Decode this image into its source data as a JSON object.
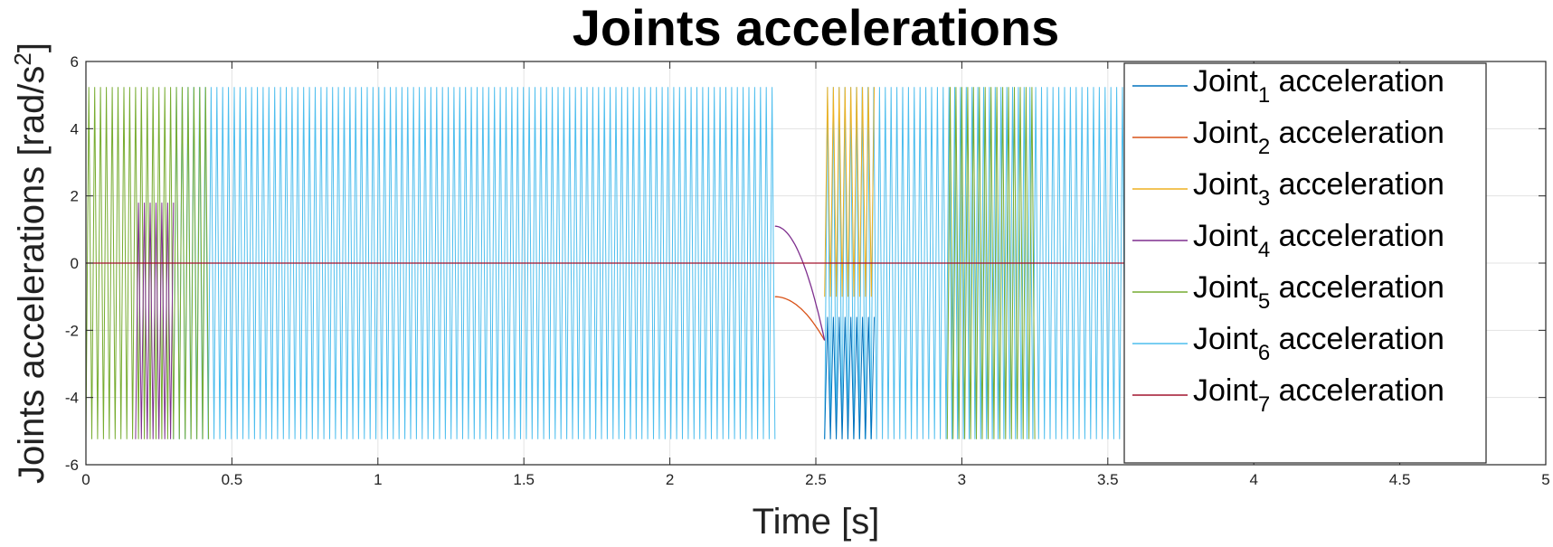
{
  "chart_data": {
    "type": "line",
    "title": "Joints accelerations",
    "xlabel": "Time [s]",
    "ylabel": "Joints accelerations [rad/s^2]",
    "ylabel_parts": {
      "main": "Joints accelerations [rad/s",
      "sup": "2",
      "end": "]"
    },
    "xlim": [
      0,
      5
    ],
    "ylim": [
      -6,
      6
    ],
    "xticks": [
      0,
      0.5,
      1,
      1.5,
      2,
      2.5,
      3,
      3.5,
      4,
      4.5,
      5
    ],
    "xtick_labels": [
      "0",
      "0.5",
      "1",
      "1.5",
      "2",
      "2.5",
      "3",
      "3.5",
      "4",
      "4.5",
      "5"
    ],
    "yticks": [
      -6,
      -4,
      -2,
      0,
      2,
      4,
      6
    ],
    "ytick_labels": [
      "-6",
      "-4",
      "-2",
      "0",
      "2",
      "4",
      "6"
    ],
    "grid": true,
    "legend_position": "top-right",
    "saturation_limit": 5.24,
    "series": [
      {
        "name_prefix": "Joint",
        "name_sub": "1",
        "name_suffix": " acceleration",
        "color": "#0072BD"
      },
      {
        "name_prefix": "Joint",
        "name_sub": "2",
        "name_suffix": " acceleration",
        "color": "#D95319"
      },
      {
        "name_prefix": "Joint",
        "name_sub": "3",
        "name_suffix": " acceleration",
        "color": "#EDB120"
      },
      {
        "name_prefix": "Joint",
        "name_sub": "4",
        "name_suffix": " acceleration",
        "color": "#7E2F8E"
      },
      {
        "name_prefix": "Joint",
        "name_sub": "5",
        "name_suffix": " acceleration",
        "color": "#77AC30"
      },
      {
        "name_prefix": "Joint",
        "name_sub": "6",
        "name_suffix": " acceleration",
        "color": "#4DBEEE"
      },
      {
        "name_prefix": "Joint",
        "name_sub": "7",
        "name_suffix": " acceleration",
        "color": "#A2142F"
      }
    ],
    "segments": [
      {
        "series": 5,
        "x": [
          0.3,
          2.36
        ],
        "y": [
          -5.24,
          5.24
        ],
        "pattern": "oscillating"
      },
      {
        "series": 5,
        "x": [
          2.53,
          3.56
        ],
        "y": [
          -5.24,
          5.24
        ],
        "pattern": "oscillating"
      },
      {
        "series": 4,
        "x": [
          0.0,
          0.42
        ],
        "y": [
          -5.24,
          5.24
        ],
        "pattern": "oscillating"
      },
      {
        "series": 4,
        "x": [
          2.95,
          3.25
        ],
        "y": [
          -5.24,
          5.24
        ],
        "pattern": "oscillating"
      },
      {
        "series": 0,
        "x": [
          2.53,
          2.7
        ],
        "y": [
          -5.24,
          -1.6
        ],
        "pattern": "oscillating"
      },
      {
        "series": 2,
        "x": [
          2.53,
          2.7
        ],
        "y": [
          -1.0,
          5.24
        ],
        "pattern": "oscillating"
      },
      {
        "series": 3,
        "x": [
          0.17,
          0.3
        ],
        "y": [
          -5.24,
          1.8
        ],
        "pattern": "oscillating"
      },
      {
        "series": 1,
        "x": [
          2.36,
          2.53
        ],
        "y": [
          -1.0,
          -2.3
        ],
        "pattern": "curve"
      },
      {
        "series": 3,
        "x": [
          2.36,
          2.53
        ],
        "y": [
          1.1,
          -2.3
        ],
        "pattern": "curve"
      },
      {
        "series": 6,
        "x": [
          0.0,
          3.56
        ],
        "y": [
          0.0,
          0.0
        ],
        "pattern": "flat"
      }
    ]
  }
}
